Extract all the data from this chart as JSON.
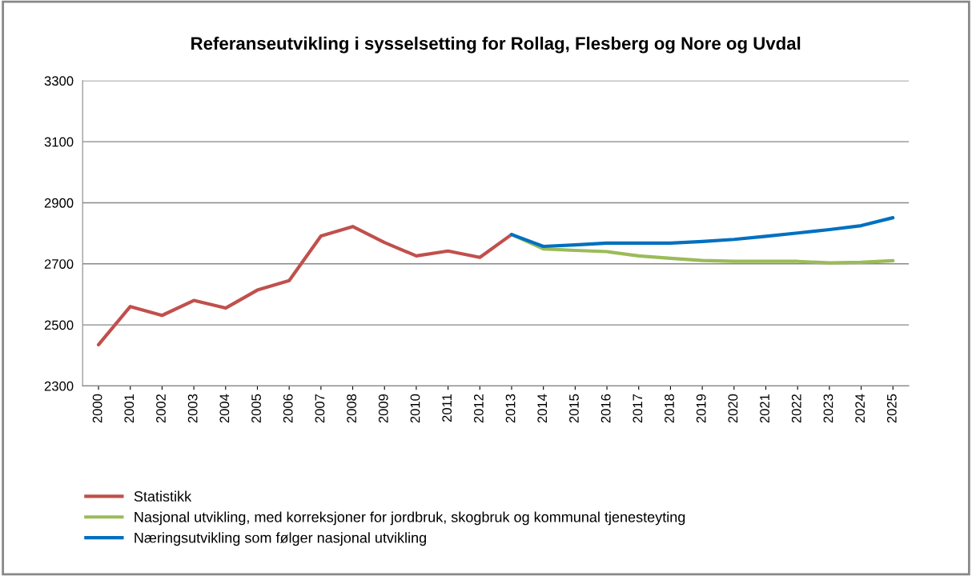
{
  "chart_data": {
    "type": "line",
    "title": "Referanseutvikling i sysselsetting for Rollag, Flesberg og Nore og Uvdal",
    "categories": [
      "2000",
      "2001",
      "2002",
      "2003",
      "2004",
      "2005",
      "2006",
      "2007",
      "2008",
      "2009",
      "2010",
      "2011",
      "2012",
      "2013",
      "2014",
      "2015",
      "2016",
      "2017",
      "2018",
      "2019",
      "2020",
      "2021",
      "2022",
      "2023",
      "2024",
      "2025"
    ],
    "series": [
      {
        "name": "Statistikk",
        "color": "#c0504d",
        "values": [
          2435,
          2560,
          2531,
          2580,
          2555,
          2614,
          2645,
          2791,
          2822,
          2770,
          2726,
          2742,
          2721,
          2796,
          null,
          null,
          null,
          null,
          null,
          null,
          null,
          null,
          null,
          null,
          null,
          null
        ]
      },
      {
        "name": "Nasjonal utvikling, med korreksjoner for jordbruk, skogbruk og kommunal tjenesteyting",
        "color": "#9bbb59",
        "values": [
          null,
          null,
          null,
          null,
          null,
          null,
          null,
          null,
          null,
          null,
          null,
          null,
          null,
          2796,
          2749,
          2744,
          2740,
          2726,
          2718,
          2711,
          2708,
          2708,
          2708,
          2703,
          2705,
          2710
        ]
      },
      {
        "name": "Næringsutvikling som følger nasjonal utvikling",
        "color": "#0070c0",
        "values": [
          null,
          null,
          null,
          null,
          null,
          null,
          null,
          null,
          null,
          null,
          null,
          null,
          null,
          2796,
          2757,
          2762,
          2768,
          2768,
          2768,
          2773,
          2780,
          2790,
          2801,
          2812,
          2825,
          2851
        ]
      }
    ],
    "ylim": [
      2300,
      3300
    ],
    "yticks": [
      2300,
      2500,
      2700,
      2900,
      3100,
      3300
    ],
    "grid": "y",
    "legend": "bottom",
    "marker": "none",
    "line_style": "solid"
  }
}
